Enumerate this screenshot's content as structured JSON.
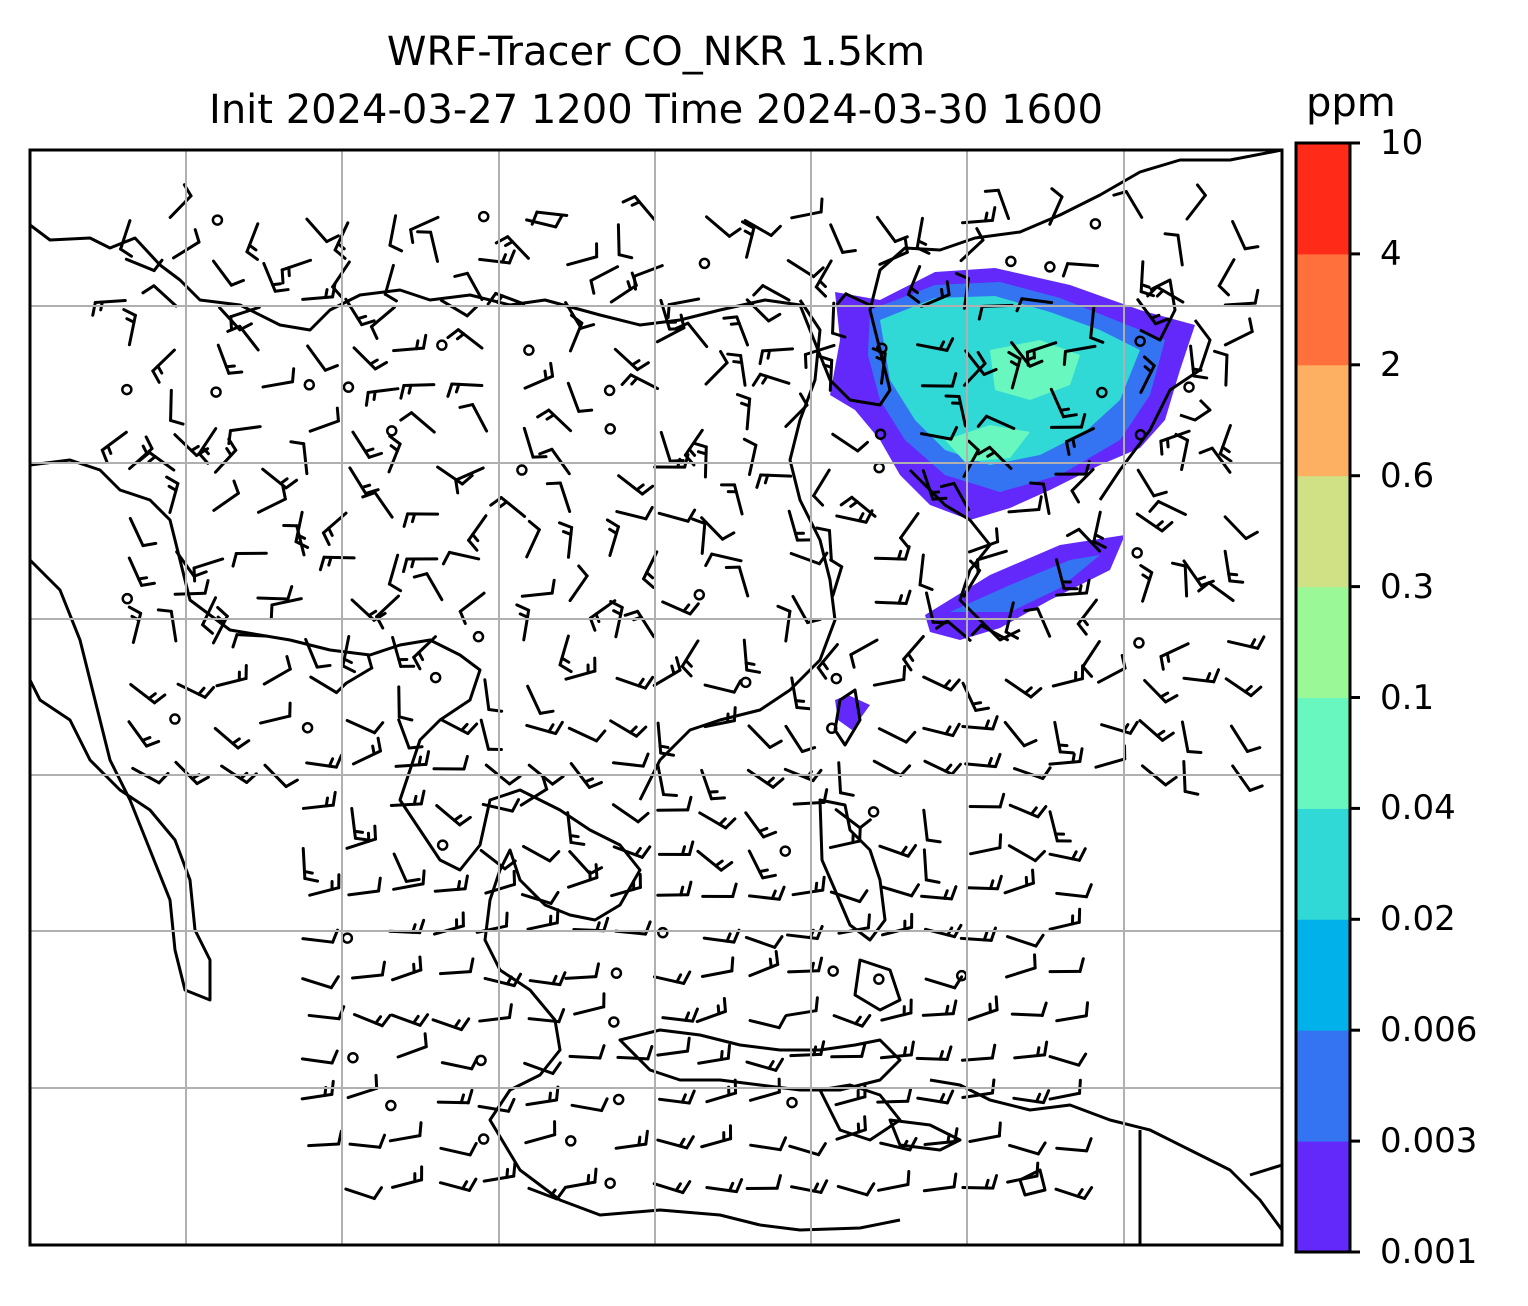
{
  "title": {
    "line1": "WRF-Tracer CO_NKR 1.5km",
    "line2": "Init 2024-03-27 1200 Time 2024-03-30 1600"
  },
  "colorbar": {
    "unit": "ppm",
    "levels": [
      "0.001",
      "0.003",
      "0.006",
      "0.02",
      "0.04",
      "0.1",
      "0.3",
      "0.6",
      "2",
      "4",
      "10"
    ],
    "colors": [
      "#6329fb",
      "#3474f2",
      "#00b1ea",
      "#30d8d6",
      "#68f8bf",
      "#9af996",
      "#d0e084",
      "#fdb062",
      "#ff703c",
      "#ff2a18"
    ]
  },
  "map": {
    "grid": true,
    "layers": [
      "coastlines",
      "wind-barbs",
      "tracer-concentration"
    ],
    "plume_colors": [
      "#6329fb",
      "#3474f2",
      "#30d8d6",
      "#68f8bf"
    ]
  }
}
